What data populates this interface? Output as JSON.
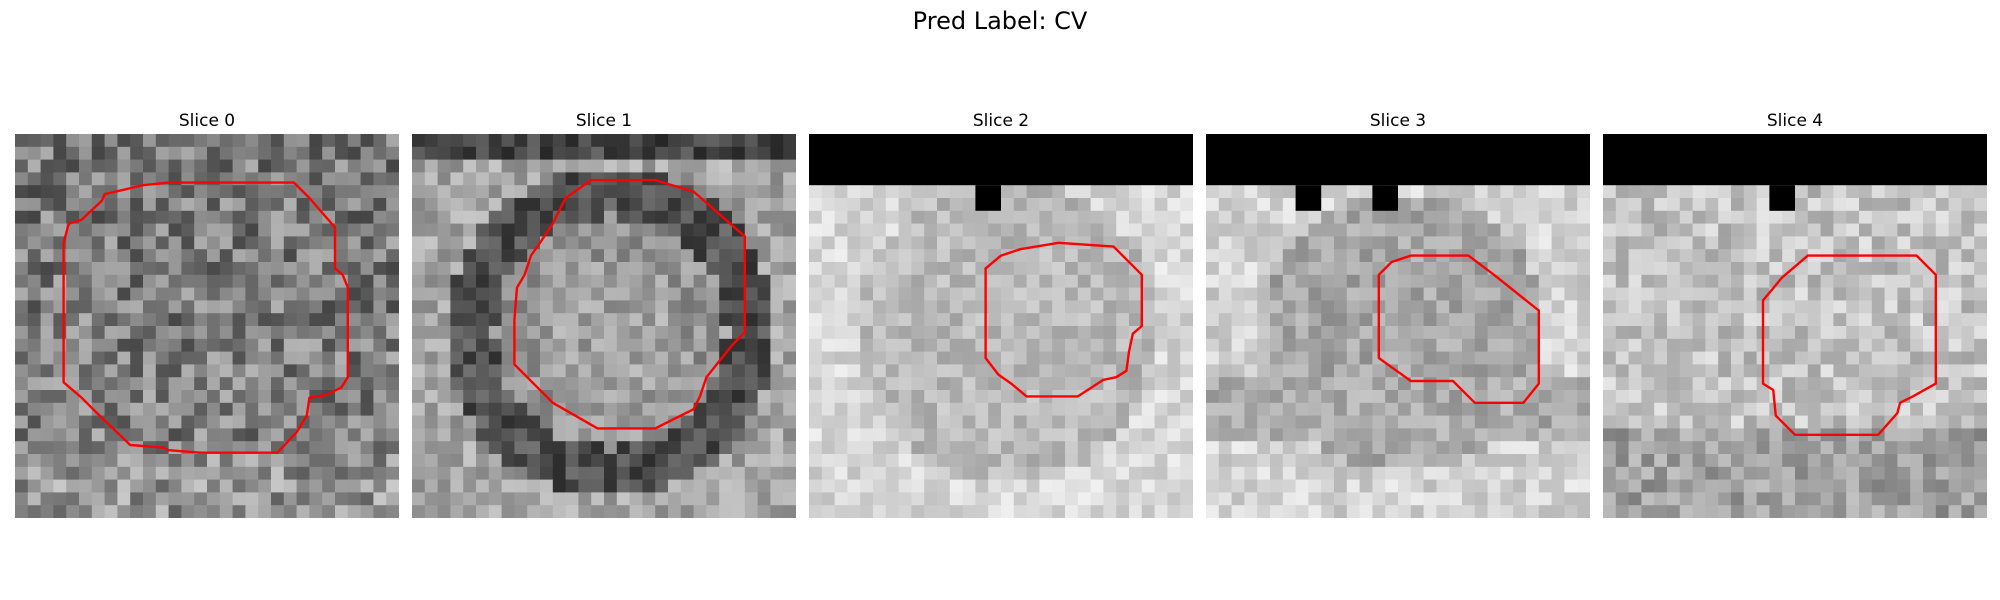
{
  "figure": {
    "title": "Pred Label: CV"
  },
  "colors": {
    "contour": "#ff0000",
    "masked_region": "#000000"
  },
  "slices": [
    {
      "title": "Slice 0"
    },
    {
      "title": "Slice 1"
    },
    {
      "title": "Slice 2"
    },
    {
      "title": "Slice 3"
    },
    {
      "title": "Slice 4"
    }
  ]
}
